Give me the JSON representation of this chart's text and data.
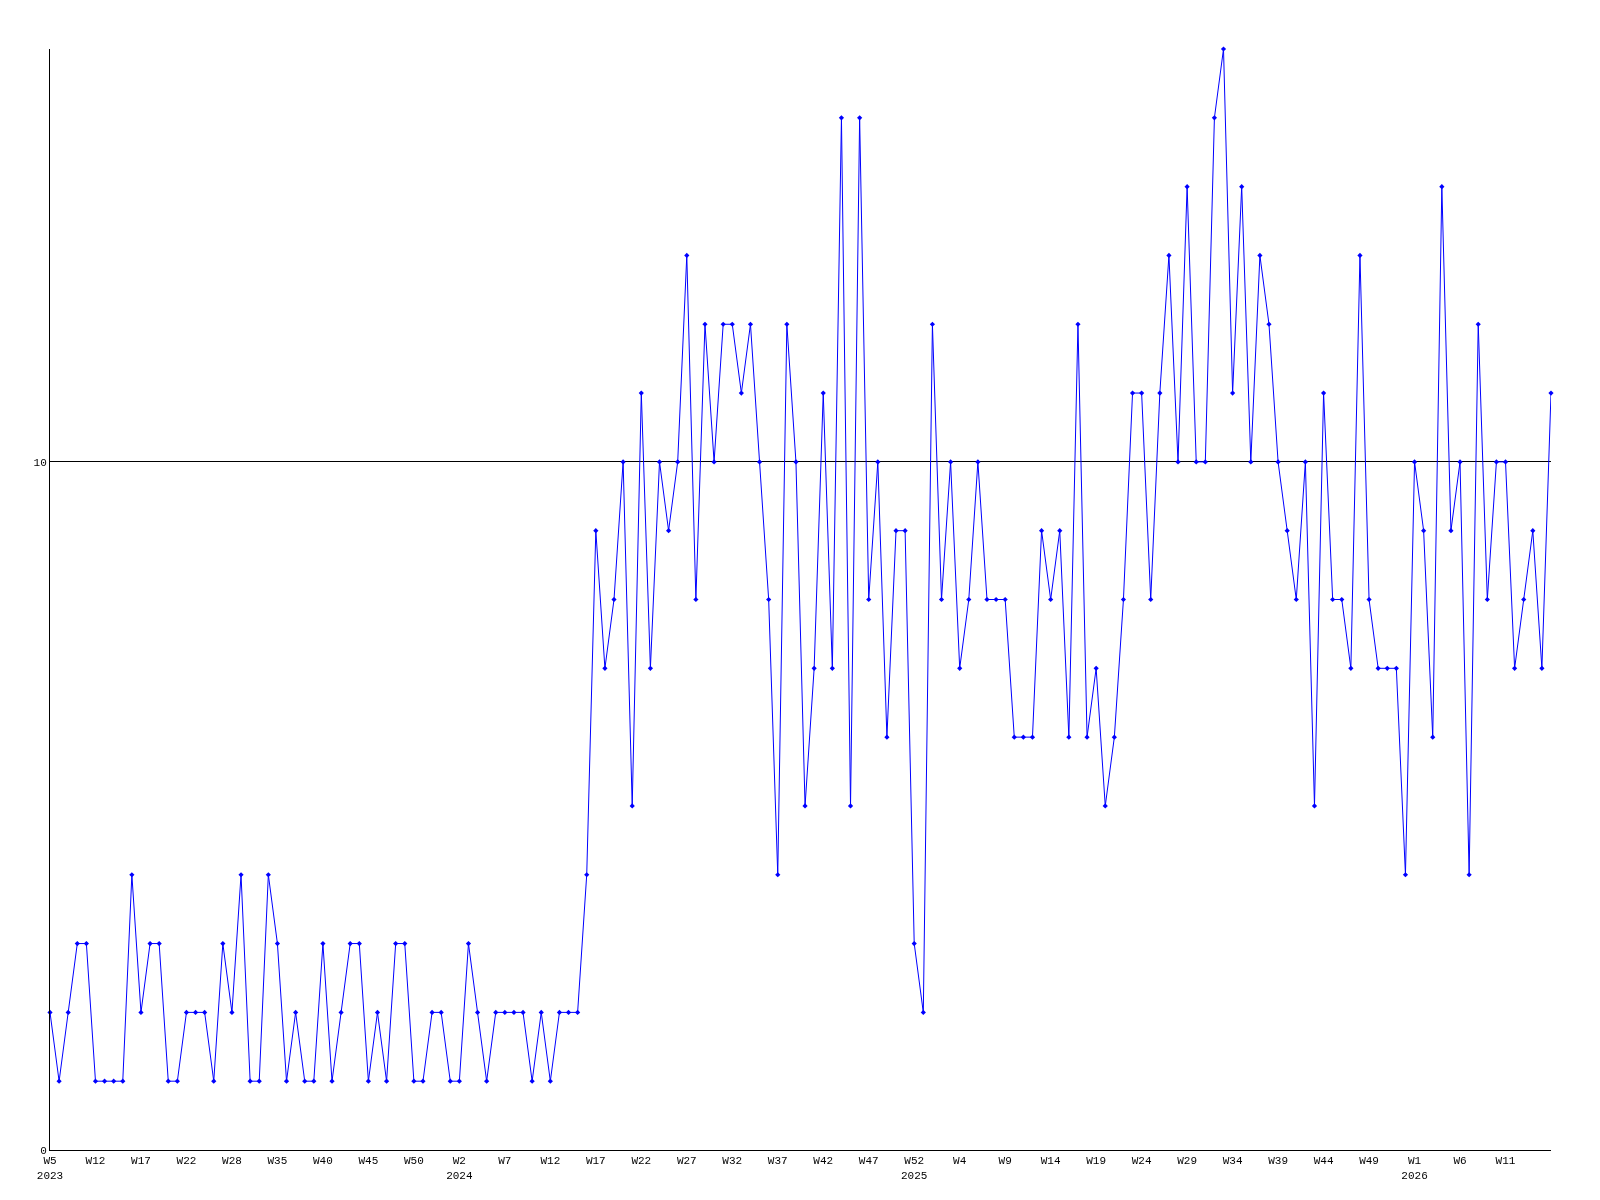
{
  "chart_data": {
    "type": "line",
    "categories": [
      "W5\n2023",
      null,
      null,
      null,
      null,
      "W12",
      null,
      null,
      null,
      null,
      "W17",
      null,
      null,
      null,
      null,
      "W22",
      null,
      null,
      null,
      null,
      "W28",
      null,
      null,
      null,
      null,
      "W35",
      null,
      null,
      null,
      null,
      "W40",
      null,
      null,
      null,
      null,
      "W45",
      null,
      null,
      null,
      null,
      "W50",
      null,
      null,
      null,
      null,
      "W2\n2024",
      null,
      null,
      null,
      null,
      "W7",
      null,
      null,
      null,
      null,
      "W12",
      null,
      null,
      null,
      null,
      "W17",
      null,
      null,
      null,
      null,
      "W22",
      null,
      null,
      null,
      null,
      "W27",
      null,
      null,
      null,
      null,
      "W32",
      null,
      null,
      null,
      null,
      "W37",
      null,
      null,
      null,
      null,
      "W42",
      null,
      null,
      null,
      null,
      "W47",
      null,
      null,
      null,
      null,
      "W52\n2025",
      null,
      null,
      null,
      null,
      "W4",
      null,
      null,
      null,
      null,
      "W9",
      null,
      null,
      null,
      null,
      "W14",
      null,
      null,
      null,
      null,
      "W19",
      null,
      null,
      null,
      null,
      "W24",
      null,
      null,
      null,
      null,
      "W29",
      null,
      null,
      null,
      null,
      "W34",
      null,
      null,
      null,
      null,
      "W39",
      null,
      null,
      null,
      null,
      "W44",
      null,
      null,
      null,
      null,
      "W49",
      null,
      null,
      null,
      null,
      "W1\n2026",
      null,
      null,
      null,
      null,
      "W6",
      null,
      null,
      null,
      null,
      "W11",
      null,
      null,
      null,
      null,
      null
    ],
    "series": [
      {
        "color": "#0000ff",
        "values": [
          2,
          1,
          2,
          3,
          3,
          1,
          1,
          1,
          1,
          4,
          2,
          3,
          3,
          1,
          1,
          2,
          2,
          2,
          1,
          3,
          2,
          4,
          1,
          1,
          4,
          3,
          1,
          2,
          1,
          1,
          3,
          1,
          2,
          3,
          3,
          1,
          2,
          1,
          3,
          3,
          1,
          1,
          2,
          2,
          1,
          1,
          3,
          2,
          1,
          2,
          2,
          2,
          2,
          1,
          2,
          1,
          2,
          2,
          2,
          4,
          9,
          7,
          8,
          10,
          5,
          11,
          7,
          10,
          9,
          10,
          13,
          8,
          12,
          10,
          12,
          12,
          11,
          12,
          10,
          8,
          4,
          12,
          10,
          5,
          7,
          11,
          7,
          15,
          5,
          15,
          8,
          10,
          6,
          9,
          9,
          3,
          2,
          12,
          8,
          10,
          7,
          8,
          10,
          8,
          8,
          8,
          6,
          6,
          6,
          9,
          8,
          9,
          6,
          12,
          6,
          7,
          5,
          6,
          8,
          11,
          11,
          8,
          11,
          13,
          10,
          14,
          10,
          10,
          15,
          16,
          11,
          14,
          10,
          13,
          12,
          10,
          9,
          8,
          10,
          5,
          11,
          8,
          8,
          7,
          13,
          8,
          7,
          7,
          7,
          4,
          10,
          9,
          6,
          14,
          9,
          10,
          4,
          12,
          8,
          10,
          10,
          7,
          8,
          9,
          7,
          11
        ]
      }
    ],
    "ylim": [
      0,
      16
    ],
    "yticks": [
      0,
      10
    ],
    "grid": "y",
    "legend": false,
    "marker": "diamond",
    "line_style": "solid"
  }
}
